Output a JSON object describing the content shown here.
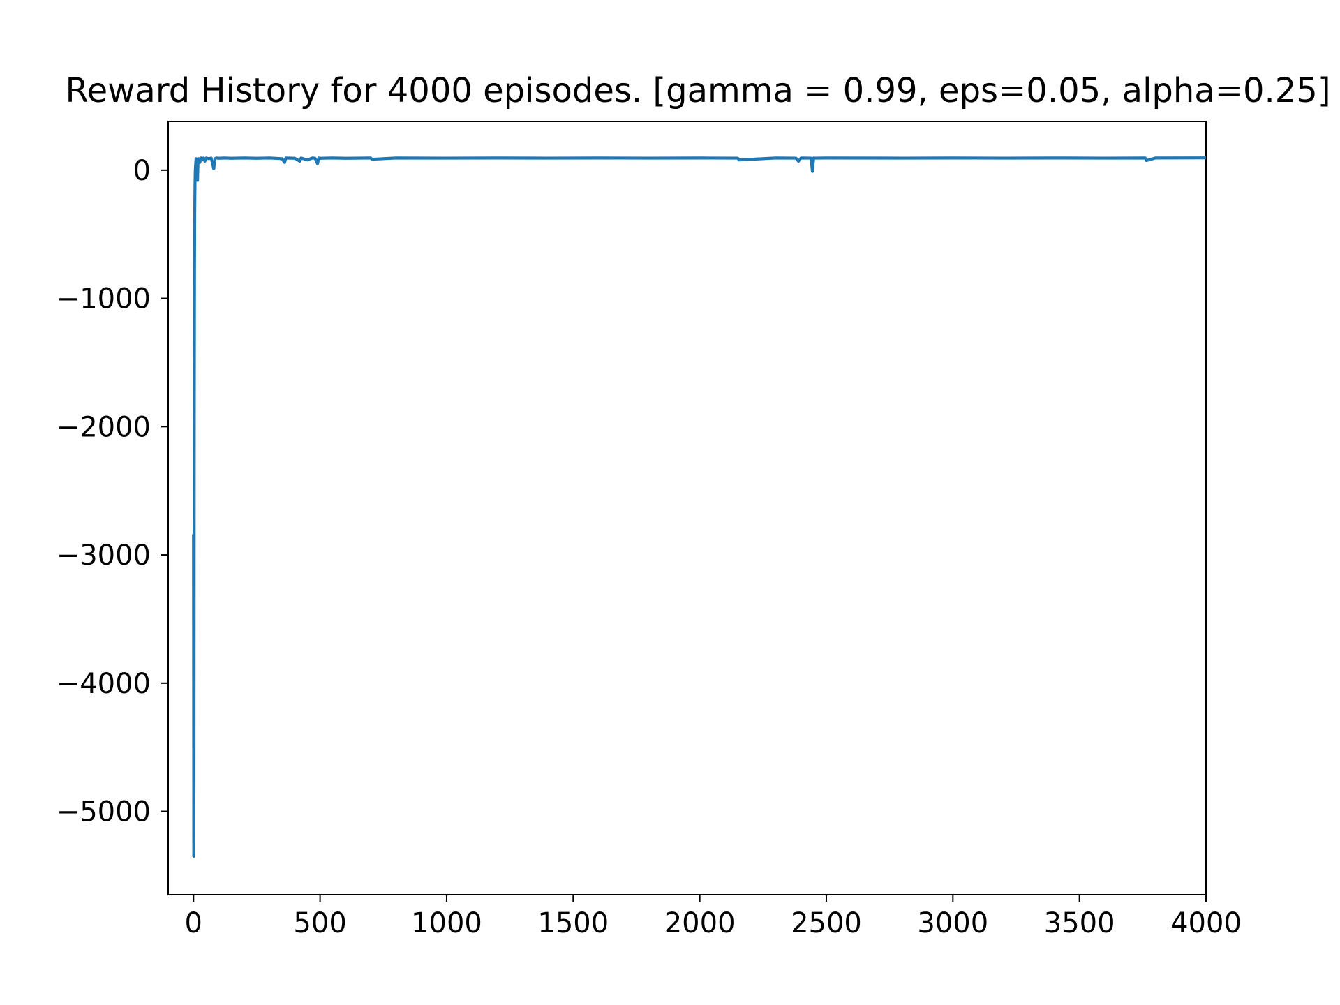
{
  "chart_data": {
    "type": "line",
    "title": "Reward History for 4000 episodes. [gamma = 0.99, eps=0.05, alpha=0.25]",
    "xlabel": "",
    "ylabel": "",
    "xlim": [
      -100,
      4000
    ],
    "ylim": [
      -5650,
      380
    ],
    "grid": false,
    "legend": "none",
    "colors": {
      "line": "#1f77b4",
      "axes": "#000000",
      "background": "#ffffff"
    },
    "x_ticks": [
      {
        "value": 0,
        "label": "0"
      },
      {
        "value": 500,
        "label": "500"
      },
      {
        "value": 1000,
        "label": "1000"
      },
      {
        "value": 1500,
        "label": "1500"
      },
      {
        "value": 2000,
        "label": "2000"
      },
      {
        "value": 2500,
        "label": "2500"
      },
      {
        "value": 3000,
        "label": "3000"
      },
      {
        "value": 3500,
        "label": "3500"
      },
      {
        "value": 4000,
        "label": "4000"
      }
    ],
    "y_ticks": [
      {
        "value": 0,
        "label": "0"
      },
      {
        "value": -1000,
        "label": "−1000"
      },
      {
        "value": -2000,
        "label": "−2000"
      },
      {
        "value": -3000,
        "label": "−3000"
      },
      {
        "value": -4000,
        "label": "−4000"
      },
      {
        "value": -5000,
        "label": "−5000"
      }
    ],
    "series": [
      {
        "x": [
          0,
          1,
          2,
          3,
          4,
          5,
          6,
          7,
          8,
          9,
          10,
          12,
          14,
          16,
          18,
          20,
          25,
          30,
          35,
          40,
          45,
          50,
          60,
          70,
          80,
          85,
          90,
          100,
          120,
          150,
          200,
          250,
          300,
          350,
          360,
          365,
          400,
          420,
          425,
          450,
          470,
          480,
          490,
          495,
          500,
          550,
          600,
          700,
          705,
          800,
          1000,
          1200,
          1400,
          1600,
          1800,
          2000,
          2150,
          2155,
          2300,
          2380,
          2390,
          2400,
          2440,
          2445,
          2450,
          2455,
          2500,
          2800,
          3000,
          3200,
          3400,
          3600,
          3760,
          3765,
          3800,
          4000
        ],
        "y": [
          -2850,
          -5350,
          -4800,
          -2000,
          -800,
          -300,
          -100,
          0,
          30,
          60,
          90,
          50,
          80,
          -80,
          70,
          90,
          60,
          95,
          80,
          95,
          70,
          95,
          90,
          95,
          10,
          90,
          95,
          93,
          95,
          93,
          95,
          93,
          95,
          90,
          60,
          95,
          93,
          70,
          95,
          80,
          95,
          93,
          50,
          95,
          93,
          95,
          93,
          95,
          85,
          95,
          94,
          95,
          94,
          95,
          94,
          95,
          94,
          80,
          95,
          94,
          70,
          95,
          94,
          -10,
          95,
          94,
          95,
          94,
          95,
          94,
          95,
          94,
          95,
          75,
          95,
          96
        ]
      }
    ]
  }
}
